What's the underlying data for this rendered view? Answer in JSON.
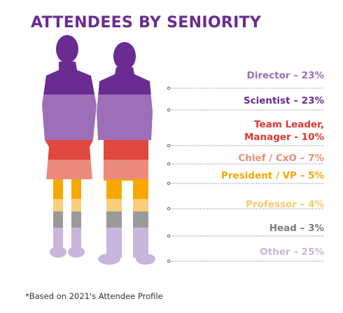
{
  "title": "ATTENDEES BY SENIORITY",
  "footnote": "*Based on 2021's Attendee Profile",
  "chart_data": {
    "type": "bar",
    "title": "ATTENDEES BY SENIORITY",
    "categories": [
      "Director",
      "Scientist",
      "Team Leader, Manager",
      "Chief / CxO",
      "President / VP",
      "Professor",
      "Head",
      "Other"
    ],
    "values": [
      23,
      23,
      10,
      7,
      5,
      4,
      3,
      25
    ],
    "unit": "%",
    "labels": [
      {
        "text": "Director – 23%",
        "color": "#9c6fb8"
      },
      {
        "text": "Scientist – 23%",
        "color": "#6b2c91"
      },
      {
        "text": "Team Leader,",
        "text2": "Manager - 10%",
        "color": "#e3372f"
      },
      {
        "text": "Chief / CxO – 7%",
        "color": "#ec8a7b"
      },
      {
        "text": "President / VP – 5%",
        "color": "#f5a800"
      },
      {
        "text": "Professor – 4%",
        "color": "#f9c96a"
      },
      {
        "text": "Head – 3%",
        "color": "#7d7d7d"
      },
      {
        "text": "Other – 25%",
        "color": "#c9b6dc"
      }
    ],
    "band_colors": [
      "#6b2c91",
      "#9c6fb8",
      "#e0473d",
      "#ec8a7b",
      "#f5a800",
      "#f9cf7c",
      "#9a9a9a",
      "#c9b6dc"
    ]
  }
}
